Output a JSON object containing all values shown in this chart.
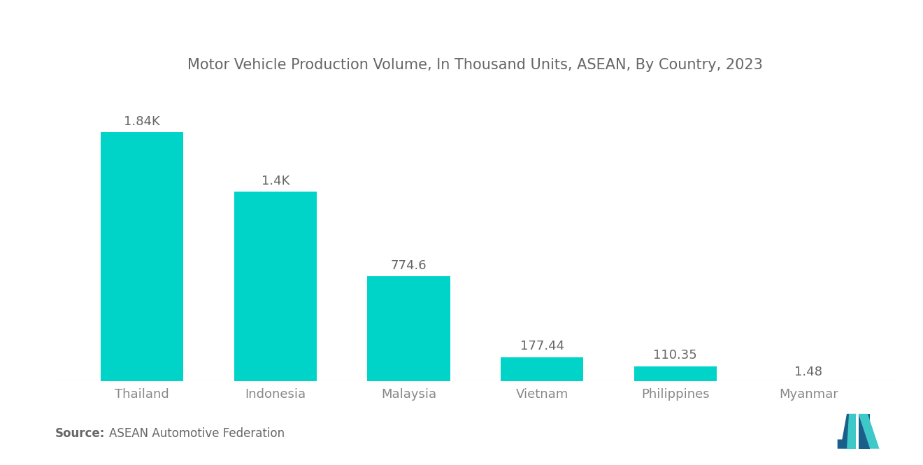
{
  "title": "Motor Vehicle Production Volume, In Thousand Units, ASEAN, By Country, 2023",
  "categories": [
    "Thailand",
    "Indonesia",
    "Malaysia",
    "Vietnam",
    "Philippines",
    "Myanmar"
  ],
  "values": [
    1840,
    1400,
    774.6,
    177.44,
    110.35,
    1.48
  ],
  "labels": [
    "1.84K",
    "1.4K",
    "774.6",
    "177.44",
    "110.35",
    "1.48"
  ],
  "bar_color": "#00D4C8",
  "background_color": "#ffffff",
  "source_bold": "Source:",
  "source_text": "ASEAN Automotive Federation",
  "title_color": "#666666",
  "label_color": "#666666",
  "tick_color": "#888888",
  "bar_width": 0.62,
  "ylim": [
    0,
    2200
  ],
  "title_fontsize": 15,
  "label_fontsize": 13,
  "tick_fontsize": 13,
  "source_fontsize": 12
}
